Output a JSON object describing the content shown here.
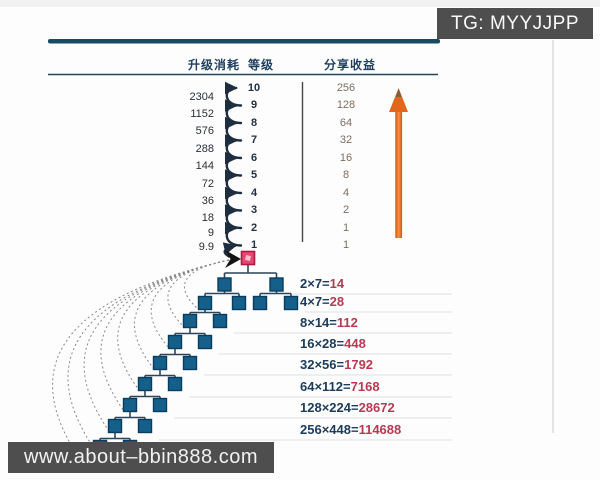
{
  "badges": {
    "telegram": "TG: MYYJJPP",
    "website": "www.about–bbin888.com"
  },
  "table": {
    "columns": {
      "cost": "升级消耗",
      "level": "等级",
      "profit": "分享收益"
    },
    "levels": [
      "10",
      "9",
      "8",
      "7",
      "6",
      "5",
      "4",
      "3",
      "2",
      "1"
    ],
    "upgrade_costs": [
      "2304",
      "1152",
      "576",
      "288",
      "144",
      "72",
      "36",
      "18",
      "9",
      "9.9"
    ],
    "share_profits": [
      "256",
      "128",
      "64",
      "32",
      "16",
      "8",
      "4",
      "2",
      "1",
      "1"
    ]
  },
  "formulas": [
    {
      "expression": "2×7=",
      "result": "14"
    },
    {
      "expression": "4×7=",
      "result": "28"
    },
    {
      "expression": "8×14=",
      "result": "112"
    },
    {
      "expression": "16×28=",
      "result": "448"
    },
    {
      "expression": "32×56=",
      "result": "1792"
    },
    {
      "expression": "64×112=",
      "result": "7168"
    },
    {
      "expression": "128×224=",
      "result": "28672"
    },
    {
      "expression": "256×448=",
      "result": "114688"
    }
  ],
  "icons": {
    "growth_arrow": "up-arrow",
    "root_node": "root-member-square",
    "level_chain": "level-up-curved-arrows",
    "referral_arcs": "dashed-return-arcs"
  },
  "colors": {
    "accent_orange": "#e2661c",
    "node_blue": "#14608a",
    "root_pink": "#e8476f",
    "result_red": "#b73a52",
    "line_navy": "#174a63",
    "profit_text": "#7d6d60",
    "badge_gray": "#4e4e4e"
  }
}
